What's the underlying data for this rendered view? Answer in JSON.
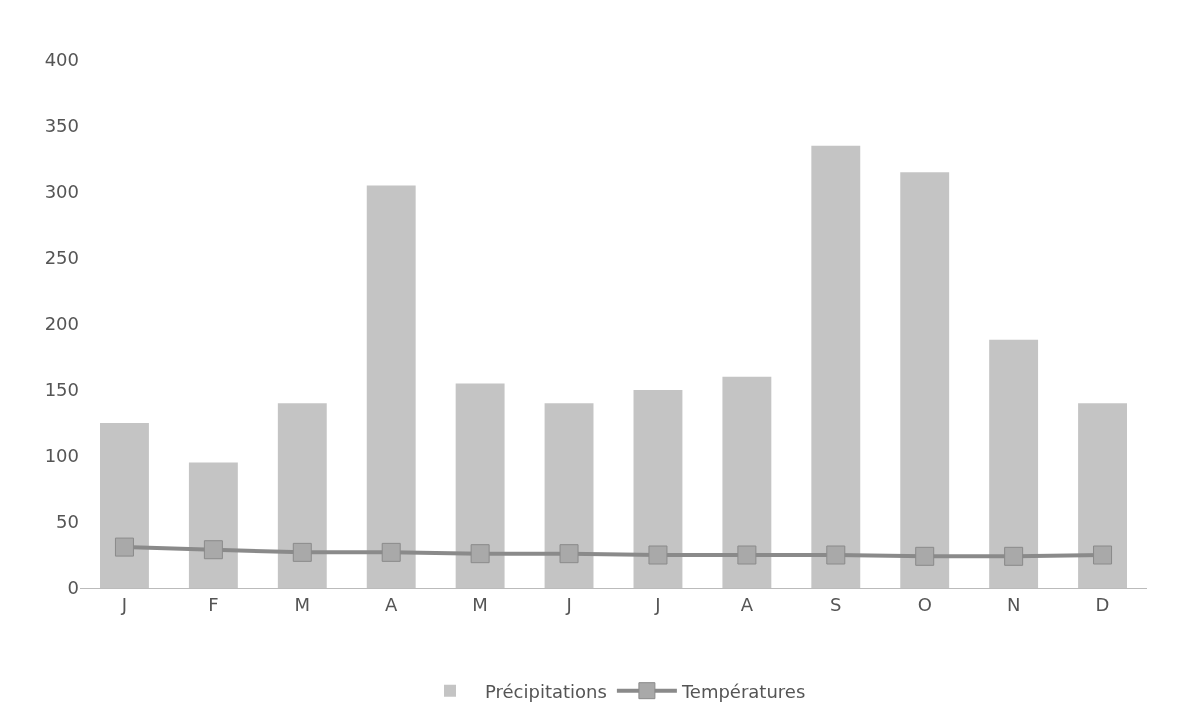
{
  "chart_data": {
    "type": "bar",
    "categories": [
      "J",
      "F",
      "M",
      "A",
      "M",
      "J",
      "J",
      "A",
      "S",
      "O",
      "N",
      "D"
    ],
    "series": [
      {
        "name": "Précipitations",
        "color": "#c4c4c4",
        "values": [
          125,
          95,
          140,
          305,
          155,
          140,
          150,
          160,
          335,
          315,
          188,
          140
        ]
      },
      {
        "name": "Températures",
        "type": "line",
        "color": "#8a8a8a",
        "marker": "square",
        "values": [
          31,
          29,
          27,
          27,
          26,
          26,
          25,
          25,
          25,
          24,
          24,
          25
        ]
      }
    ],
    "ylim": [
      0,
      400
    ],
    "yticks": [
      0,
      50,
      100,
      150,
      200,
      250,
      300,
      350,
      400
    ],
    "grid": false,
    "legend": "bottom"
  }
}
